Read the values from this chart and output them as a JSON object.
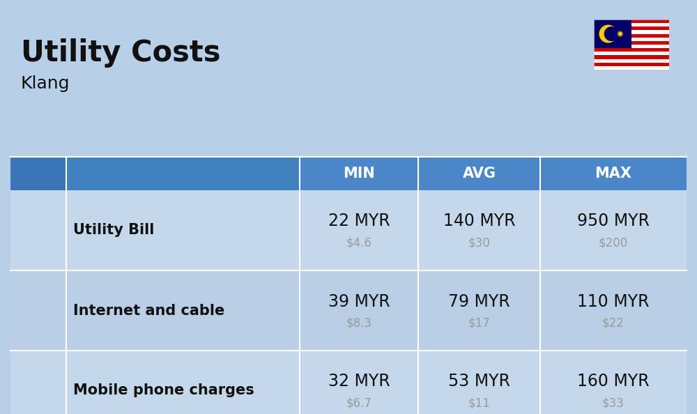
{
  "title": "Utility Costs",
  "subtitle": "Klang",
  "background_color": "#b8cfe8",
  "header_color": "#4a86c8",
  "header_text_color": "#ffffff",
  "row_color_odd": "#c5d8eb",
  "row_color_even": "#bacfe6",
  "columns": [
    "MIN",
    "AVG",
    "MAX"
  ],
  "rows": [
    {
      "label": "Utility Bill",
      "min_myr": "22 MYR",
      "min_usd": "$4.6",
      "avg_myr": "140 MYR",
      "avg_usd": "$30",
      "max_myr": "950 MYR",
      "max_usd": "$200"
    },
    {
      "label": "Internet and cable",
      "min_myr": "39 MYR",
      "min_usd": "$8.3",
      "avg_myr": "79 MYR",
      "avg_usd": "$17",
      "max_myr": "110 MYR",
      "max_usd": "$22"
    },
    {
      "label": "Mobile phone charges",
      "min_myr": "32 MYR",
      "min_usd": "$6.7",
      "avg_myr": "53 MYR",
      "avg_usd": "$11",
      "max_myr": "160 MYR",
      "max_usd": "$33"
    }
  ],
  "myr_fontsize": 17,
  "usd_fontsize": 12,
  "label_fontsize": 15,
  "header_fontsize": 15,
  "title_fontsize": 30,
  "subtitle_fontsize": 18,
  "usd_color": "#999999",
  "text_color": "#111111",
  "white": "#ffffff"
}
